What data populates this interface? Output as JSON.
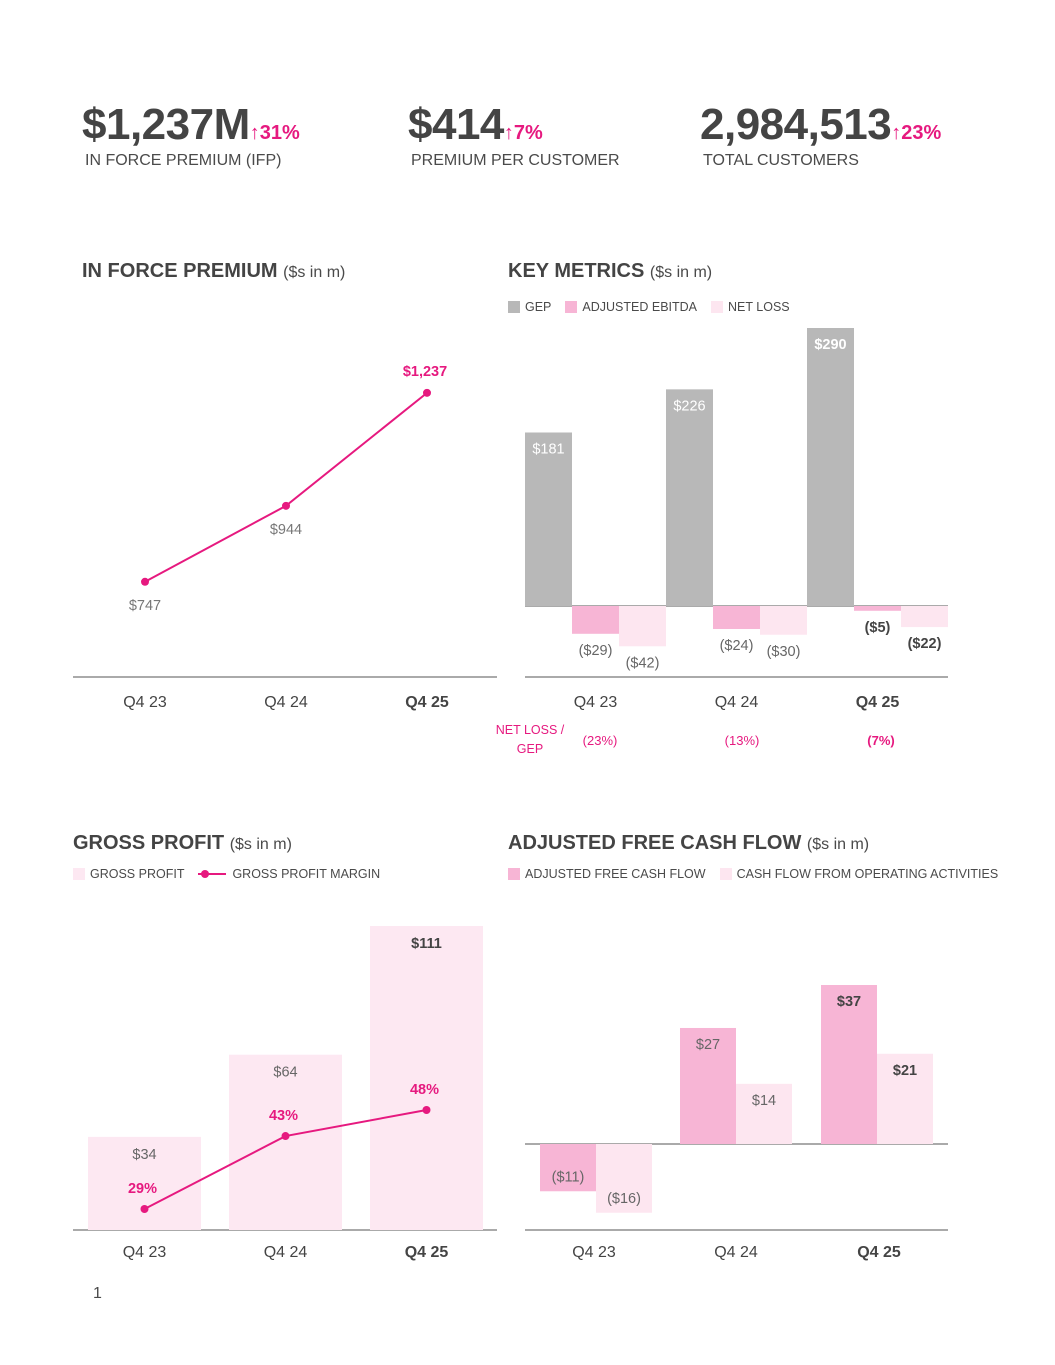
{
  "kpis": [
    {
      "value": "$1,237M",
      "change": "↑31%",
      "label": "IN FORCE PREMIUM (IFP)"
    },
    {
      "value": "$414",
      "change": "↑7%",
      "label": "PREMIUM PER CUSTOMER"
    },
    {
      "value": "2,984,513",
      "change": "↑23%",
      "label": "TOTAL CUSTOMERS"
    }
  ],
  "colors": {
    "accent": "#e6197f",
    "gep": "#b8b8b8",
    "ebitda": "#f7b5d5",
    "netloss": "#fde6f0",
    "gross": "#fde8f2",
    "axis": "#555555",
    "text": "#4a4a4a"
  },
  "page_number": "1",
  "chart_data": [
    {
      "id": "ifp",
      "type": "line",
      "title": "IN FORCE PREMIUM",
      "unit": "($s in m)",
      "categories": [
        "Q4 23",
        "Q4 24",
        "Q4 25"
      ],
      "values": [
        747,
        944,
        1237
      ],
      "labels": [
        "$747",
        "$944",
        "$1,237"
      ],
      "ylim": [
        500,
        1400
      ]
    },
    {
      "id": "key",
      "type": "bar",
      "title": "KEY METRICS",
      "unit": "($s in m)",
      "categories": [
        "Q4 23",
        "Q4 24",
        "Q4 25"
      ],
      "series": [
        {
          "name": "GEP",
          "values": [
            181,
            226,
            290
          ],
          "labels": [
            "$181",
            "$226",
            "$290"
          ]
        },
        {
          "name": "ADJUSTED EBITDA",
          "values": [
            -29,
            -24,
            -5
          ],
          "labels": [
            "($29)",
            "($24)",
            "($5)"
          ]
        },
        {
          "name": "NET LOSS",
          "values": [
            -42,
            -30,
            -22
          ],
          "labels": [
            "($42)",
            "($30)",
            "($22)"
          ]
        }
      ],
      "ratio_label": [
        "NET LOSS /",
        "GEP"
      ],
      "ratios": [
        "(23%)",
        "(13%)",
        "(7%)"
      ],
      "ylim": [
        -75,
        300
      ]
    },
    {
      "id": "gp",
      "type": "bar",
      "title": "GROSS PROFIT",
      "unit": "($s in m)",
      "categories": [
        "Q4 23",
        "Q4 24",
        "Q4 25"
      ],
      "series": [
        {
          "name": "GROSS PROFIT",
          "values": [
            34,
            64,
            111
          ],
          "labels": [
            "$34",
            "$64",
            "$111"
          ]
        },
        {
          "name": "GROSS PROFIT MARGIN",
          "values": [
            29,
            43,
            48
          ],
          "labels": [
            "29%",
            "43%",
            "48%"
          ]
        }
      ],
      "ylim": [
        0,
        111
      ]
    },
    {
      "id": "fcf",
      "type": "bar",
      "title": "ADJUSTED FREE CASH FLOW",
      "unit": "($s in m)",
      "categories": [
        "Q4 23",
        "Q4 24",
        "Q4 25"
      ],
      "series": [
        {
          "name": "ADJUSTED FREE CASH FLOW",
          "values": [
            -11,
            27,
            37
          ],
          "labels": [
            "($11)",
            "$27",
            "$37"
          ]
        },
        {
          "name": "CASH FLOW FROM OPERATING ACTIVITIES",
          "values": [
            -16,
            14,
            21
          ],
          "labels": [
            "($16)",
            "$14",
            "$21"
          ]
        }
      ],
      "ylim": [
        -20,
        40
      ]
    }
  ]
}
